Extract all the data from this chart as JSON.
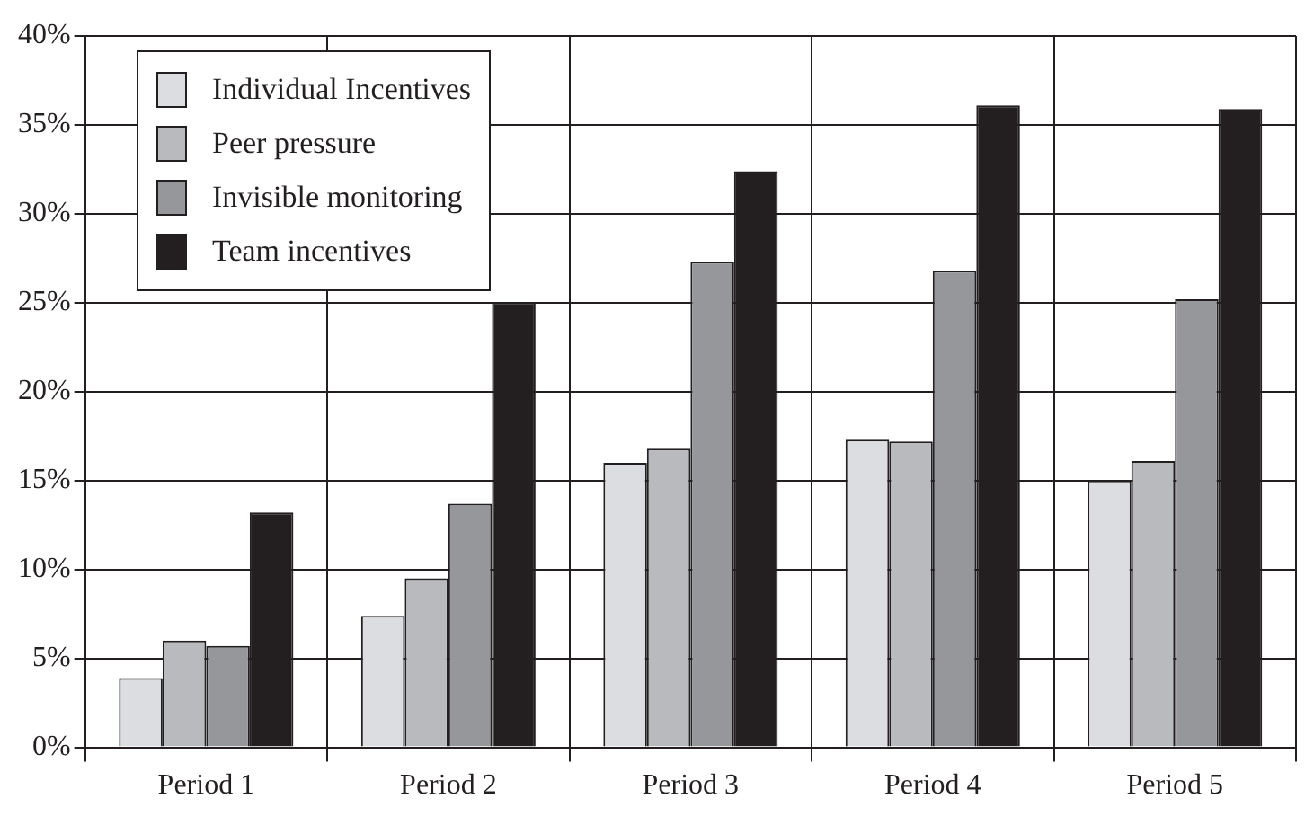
{
  "chart_data": {
    "type": "bar",
    "categories": [
      "Period 1",
      "Period 2",
      "Period 3",
      "Period 4",
      "Period 5"
    ],
    "series": [
      {
        "name": "Individual Incentives",
        "color": "#dcdde0",
        "values": [
          3.9,
          7.4,
          16.0,
          17.3,
          15.0
        ]
      },
      {
        "name": "Peer pressure",
        "color": "#b9babe",
        "values": [
          6.0,
          9.5,
          16.8,
          17.2,
          16.1
        ]
      },
      {
        "name": "Invisible monitoring",
        "color": "#96979b",
        "values": [
          5.7,
          13.7,
          27.3,
          26.8,
          25.2
        ]
      },
      {
        "name": "Team incentives",
        "color": "#231f20",
        "values": [
          13.2,
          25.0,
          32.4,
          36.1,
          35.9
        ]
      }
    ],
    "ylim": [
      0,
      40
    ],
    "yticks": [
      {
        "value": 0,
        "label": "0%"
      },
      {
        "value": 5,
        "label": "5%"
      },
      {
        "value": 10,
        "label": "10%"
      },
      {
        "value": 15,
        "label": "15%"
      },
      {
        "value": 20,
        "label": "20%"
      },
      {
        "value": 25,
        "label": "25%"
      },
      {
        "value": 30,
        "label": "30%"
      },
      {
        "value": 35,
        "label": "35%"
      },
      {
        "value": 40,
        "label": "40%"
      }
    ],
    "grid": true,
    "legend": "top left"
  }
}
